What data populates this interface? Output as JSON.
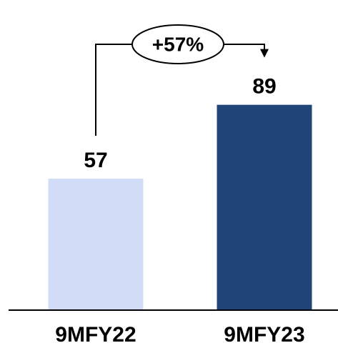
{
  "chart_data": {
    "type": "bar",
    "categories": [
      "9MFY22",
      "9MFY23"
    ],
    "values": [
      57,
      89
    ],
    "data_labels": [
      "57",
      "89"
    ],
    "colors": [
      "#d3dcf6",
      "#1f4677"
    ],
    "growth_label": "+57%",
    "ylim": [
      0,
      105
    ],
    "grid": false,
    "legend": "none"
  }
}
